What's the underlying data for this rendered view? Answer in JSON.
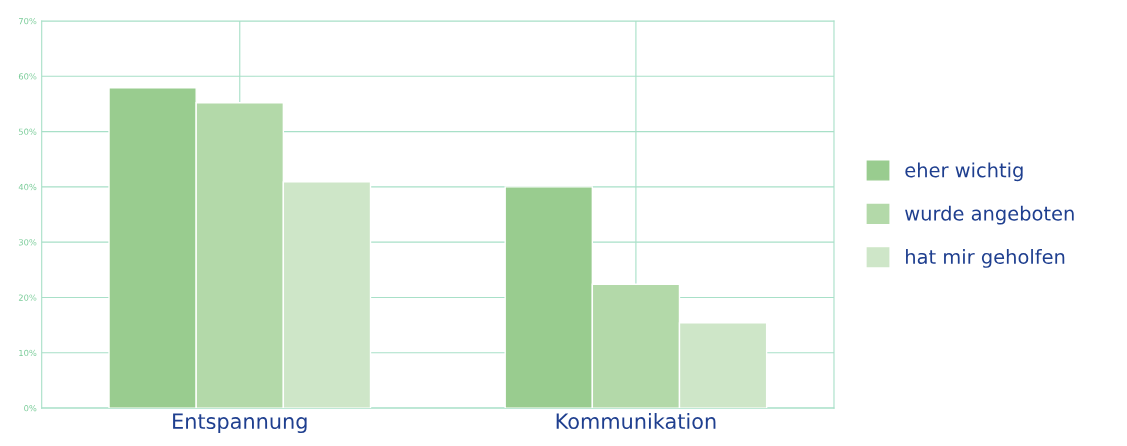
{
  "chart_data": {
    "type": "bar",
    "categories": [
      "Entspannung",
      "Kommunikation"
    ],
    "series": [
      {
        "name": "eher wichtig",
        "color": "#99cc8f",
        "values": [
          57.9,
          40.0
        ]
      },
      {
        "name": "wurde angeboten",
        "color": "#b3d9a9",
        "values": [
          55.2,
          22.4
        ]
      },
      {
        "name": "hat mir geholfen",
        "color": "#cee6c8",
        "values": [
          40.9,
          15.4
        ]
      }
    ],
    "ylim": [
      0,
      70
    ],
    "yticks": [
      {
        "value": 0,
        "label": "0%"
      },
      {
        "value": 10,
        "label": "10%"
      },
      {
        "value": 20,
        "label": "20%"
      },
      {
        "value": 30,
        "label": "30%"
      },
      {
        "value": 40,
        "label": "40%"
      },
      {
        "value": 50,
        "label": "50%"
      },
      {
        "value": 60,
        "label": "60%"
      },
      {
        "value": 70,
        "label": "70%"
      }
    ],
    "grid": true,
    "legend": "right"
  }
}
